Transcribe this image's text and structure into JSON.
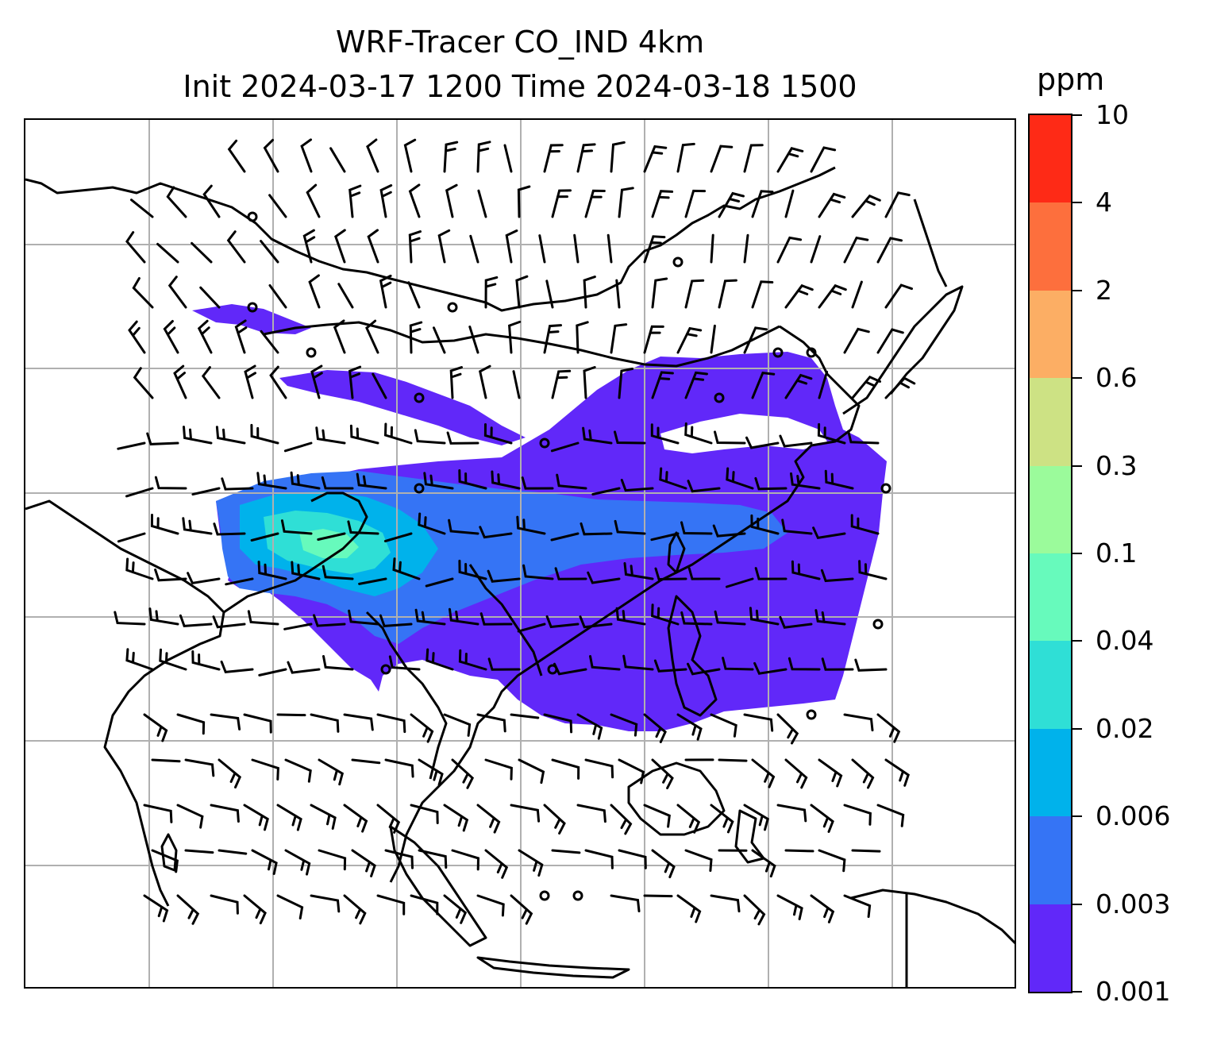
{
  "title": {
    "line1": "WRF-Tracer CO_IND 4km",
    "line2": "Init 2024-03-17 1200 Time 2024-03-18 1500"
  },
  "colorbar": {
    "unit": "ppm",
    "levels": [
      "0.001",
      "0.003",
      "0.006",
      "0.02",
      "0.04",
      "0.1",
      "0.3",
      "0.6",
      "2",
      "4",
      "10"
    ],
    "colors": [
      "#6128f9",
      "#3574f5",
      "#00b2eb",
      "#2fdfd6",
      "#67fabc",
      "#9bfb9b",
      "#cde284",
      "#fcae64",
      "#fd6f3d",
      "#fe2a16"
    ]
  },
  "map": {
    "projection_grid": "latitude-longitude gridlines",
    "features": [
      "coastlines",
      "country borders",
      "wind barbs",
      "tracer concentration fill"
    ],
    "tracer_name": "CO_IND",
    "resolution": "4km"
  }
}
